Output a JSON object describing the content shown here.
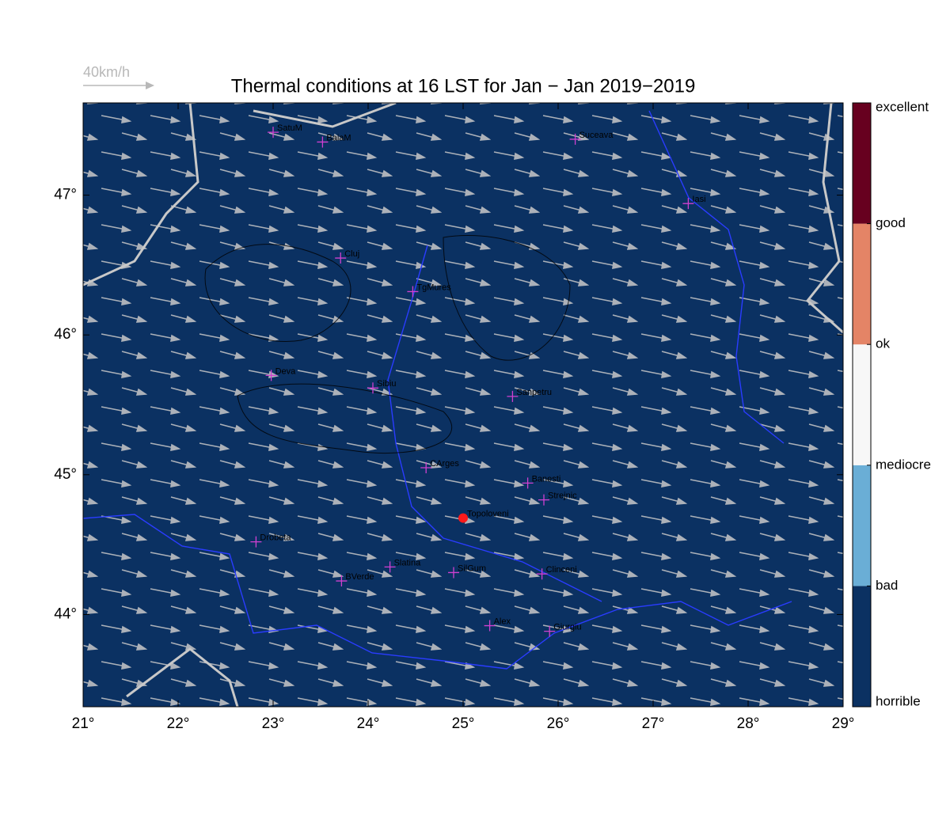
{
  "chart_data": {
    "type": "map",
    "title": "Thermal conditions at 16 LST for Jan − Jan  2019−2019",
    "scale_label": "40km/h",
    "xlim": [
      21,
      29
    ],
    "ylim": [
      43.34,
      47.66
    ],
    "xticks": [
      {
        "value": 21,
        "label": "21°"
      },
      {
        "value": 22,
        "label": "22°"
      },
      {
        "value": 23,
        "label": "23°"
      },
      {
        "value": 24,
        "label": "24°"
      },
      {
        "value": 25,
        "label": "25°"
      },
      {
        "value": 26,
        "label": "26°"
      },
      {
        "value": 27,
        "label": "27°"
      },
      {
        "value": 28,
        "label": "28°"
      },
      {
        "value": 29,
        "label": "29°"
      }
    ],
    "yticks": [
      {
        "value": 44,
        "label": "44°"
      },
      {
        "value": 45,
        "label": "45°"
      },
      {
        "value": 46,
        "label": "46°"
      },
      {
        "value": 47,
        "label": "47°"
      }
    ],
    "background_color": "#0b3162",
    "colorbar": {
      "levels": [
        "horrible",
        "bad",
        "mediocre",
        "ok",
        "good",
        "excellent"
      ],
      "colors": [
        "#0b3162",
        "#6aaed6",
        "#f7f7f7",
        "#e48466",
        "#67001f"
      ]
    },
    "cities": {
      "names": [
        "SatuM",
        "BaiaM",
        "Suceava",
        "Iasi",
        "Cluj",
        "TgMures",
        "Deva",
        "Sibiu",
        "Sanpetru",
        "CArges",
        "Banesti",
        "Strejnic",
        "Topoloveni",
        "Drobeta",
        "Slatina",
        "SilGum",
        "Clinceni",
        "BVerde",
        "Alex",
        "Giurgiu"
      ],
      "lon": [
        23.0,
        23.52,
        26.18,
        27.37,
        23.71,
        24.47,
        22.98,
        24.05,
        25.52,
        24.61,
        25.68,
        25.85,
        25.0,
        22.82,
        24.23,
        24.9,
        25.83,
        23.72,
        25.28,
        25.91
      ],
      "lat": [
        47.45,
        47.38,
        47.4,
        46.94,
        46.55,
        46.31,
        45.71,
        45.62,
        45.56,
        45.05,
        44.94,
        44.82,
        44.69,
        44.52,
        44.34,
        44.3,
        44.29,
        44.24,
        43.92,
        43.88
      ],
      "highlight": "Topoloveni"
    }
  }
}
